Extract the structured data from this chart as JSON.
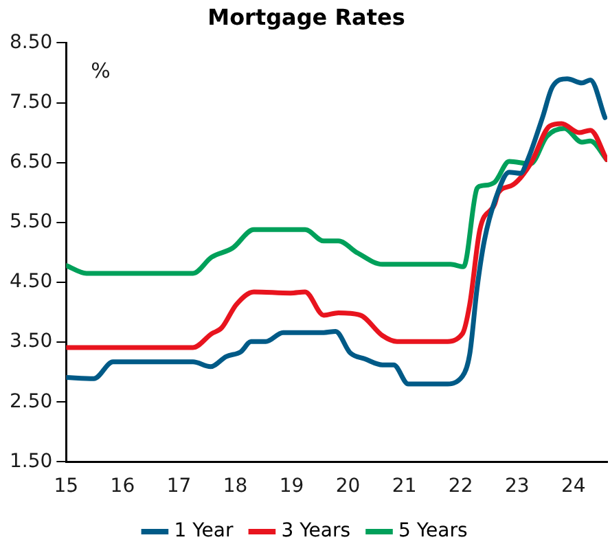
{
  "chart_data": {
    "type": "line",
    "title": "Mortgage Rates",
    "annotations": [
      "%"
    ],
    "xlim": [
      15,
      24.6
    ],
    "xticks": [
      15,
      16,
      17,
      18,
      19,
      20,
      21,
      22,
      23,
      24
    ],
    "ylim": [
      1.5,
      8.5
    ],
    "yticks": [
      {
        "value": 1.5,
        "label": "1.50"
      },
      {
        "value": 2.5,
        "label": "2.50"
      },
      {
        "value": 3.5,
        "label": "3.50"
      },
      {
        "value": 4.5,
        "label": "4.50"
      },
      {
        "value": 5.5,
        "label": "5.50"
      },
      {
        "value": 6.5,
        "label": "6.50"
      },
      {
        "value": 7.5,
        "label": "7.50"
      },
      {
        "value": 8.5,
        "label": "8.50"
      }
    ],
    "grid": false,
    "legend": "bottom",
    "marker": "none",
    "line_style": "solid",
    "series": [
      {
        "name": "1 Year",
        "color": "#005a87",
        "x": [
          15,
          15.49,
          15.83,
          17.25,
          17.56,
          17.84,
          18.1,
          18.28,
          18.54,
          18.85,
          19.57,
          19.78,
          20.04,
          20.3,
          20.61,
          20.81,
          21.07,
          21.72,
          22.03,
          22.16,
          22.29,
          22.42,
          22.62,
          22.86,
          23.06,
          23.19,
          23.45,
          23.63,
          23.89,
          24.15,
          24.3,
          24.56
        ],
        "values": [
          2.91,
          2.89,
          3.17,
          3.17,
          3.09,
          3.26,
          3.34,
          3.51,
          3.51,
          3.66,
          3.66,
          3.68,
          3.32,
          3.22,
          3.12,
          3.12,
          2.8,
          2.8,
          2.93,
          3.3,
          4.4,
          5.2,
          5.9,
          6.34,
          6.32,
          6.55,
          7.25,
          7.77,
          7.9,
          7.83,
          7.88,
          7.25
        ]
      },
      {
        "name": "3 Years",
        "color": "#e8141e",
        "x": [
          15,
          17.25,
          17.58,
          17.76,
          18.02,
          18.33,
          18.98,
          19.24,
          19.57,
          19.83,
          20.22,
          20.61,
          20.87,
          21.72,
          22.03,
          22.16,
          22.34,
          22.6,
          22.67,
          22.93,
          23.24,
          23.58,
          23.79,
          24.1,
          24.3,
          24.59
        ],
        "values": [
          3.41,
          3.41,
          3.64,
          3.74,
          4.13,
          4.34,
          4.32,
          4.34,
          3.95,
          3.99,
          3.95,
          3.61,
          3.51,
          3.51,
          3.64,
          4.13,
          5.38,
          5.8,
          6.0,
          6.13,
          6.48,
          7.11,
          7.15,
          7.0,
          7.04,
          6.55
        ]
      },
      {
        "name": "5 Years",
        "color": "#00a05a",
        "x": [
          15,
          15.36,
          17.25,
          17.58,
          17.95,
          18.33,
          19.24,
          19.57,
          19.83,
          20.17,
          20.61,
          21.82,
          22.05,
          22.29,
          22.36,
          22.6,
          22.86,
          23.24,
          23.53,
          23.84,
          24.15,
          24.3,
          24.59
        ],
        "values": [
          4.78,
          4.65,
          4.65,
          4.92,
          5.07,
          5.38,
          5.38,
          5.19,
          5.19,
          4.99,
          4.8,
          4.8,
          4.76,
          6.07,
          6.11,
          6.17,
          6.52,
          6.48,
          6.94,
          7.07,
          6.84,
          6.86,
          6.55
        ]
      }
    ]
  }
}
